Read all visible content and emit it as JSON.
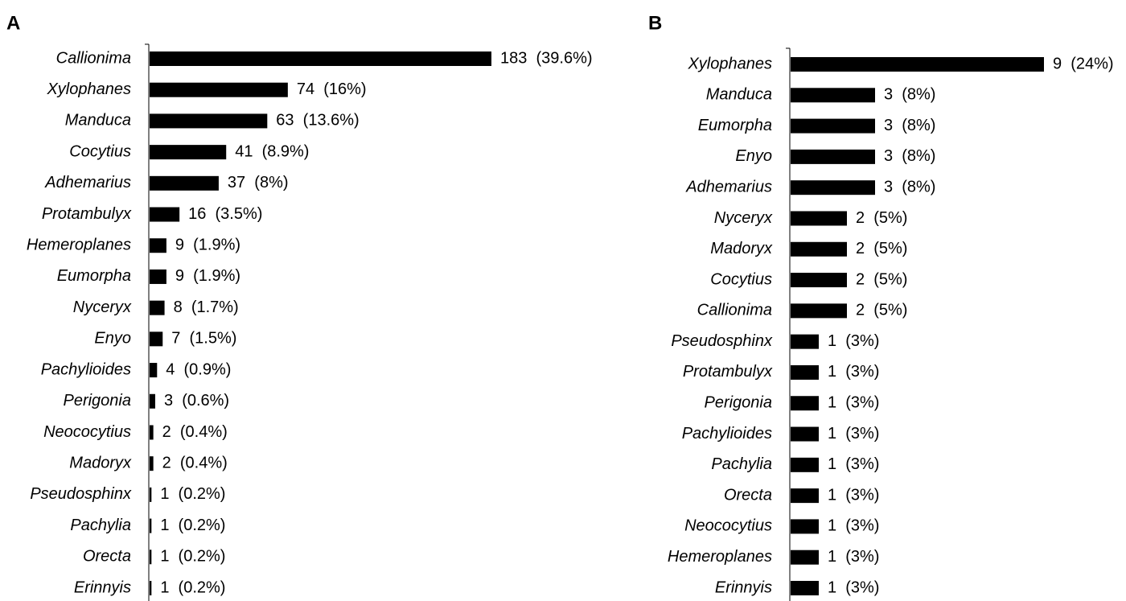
{
  "chart_data": [
    {
      "type": "bar",
      "horizontal": true,
      "title": "A",
      "color": "#000000",
      "categories": [
        "Callionima",
        "Xylophanes",
        "Manduca",
        "Cocytius",
        "Adhemarius",
        "Protambulyx",
        "Hemeroplanes",
        "Eumorpha",
        "Nyceryx",
        "Enyo",
        "Pachylioides",
        "Perigonia",
        "Neococytius",
        "Madoryx",
        "Pseudosphinx",
        "Pachylia",
        "Orecta",
        "Erinnyis"
      ],
      "values": [
        183,
        74,
        63,
        41,
        37,
        16,
        9,
        9,
        8,
        7,
        4,
        3,
        2,
        2,
        1,
        1,
        1,
        1
      ],
      "value_labels": [
        "183  (39.6%)",
        "74  (16%)",
        "63  (13.6%)",
        "41  (8.9%)",
        "37  (8%)",
        "16  (3.5%)",
        "9  (1.9%)",
        "9  (1.9%)",
        "8  (1.7%)",
        "7  (1.5%)",
        "4  (0.9%)",
        "3  (0.6%)",
        "2  (0.4%)",
        "2  (0.4%)",
        "1  (0.2%)",
        "1  (0.2%)",
        "1  (0.2%)",
        "1  (0.2%)"
      ]
    },
    {
      "type": "bar",
      "horizontal": true,
      "title": "B",
      "color": "#000000",
      "categories": [
        "Xylophanes",
        "Manduca",
        "Eumorpha",
        "Enyo",
        "Adhemarius",
        "Nyceryx",
        "Madoryx",
        "Cocytius",
        "Callionima",
        "Pseudosphinx",
        "Protambulyx",
        "Perigonia",
        "Pachylioides",
        "Pachylia",
        "Orecta",
        "Neococytius",
        "Hemeroplanes",
        "Erinnyis"
      ],
      "values": [
        9,
        3,
        3,
        3,
        3,
        2,
        2,
        2,
        2,
        1,
        1,
        1,
        1,
        1,
        1,
        1,
        1,
        1
      ],
      "value_labels": [
        "9  (24%)",
        "3  (8%)",
        "3  (8%)",
        "3  (8%)",
        "3  (8%)",
        "2  (5%)",
        "2  (5%)",
        "2  (5%)",
        "2  (5%)",
        "1  (3%)",
        "1  (3%)",
        "1  (3%)",
        "1  (3%)",
        "1  (3%)",
        "1  (3%)",
        "1  (3%)",
        "1  (3%)",
        "1  (3%)"
      ]
    }
  ]
}
